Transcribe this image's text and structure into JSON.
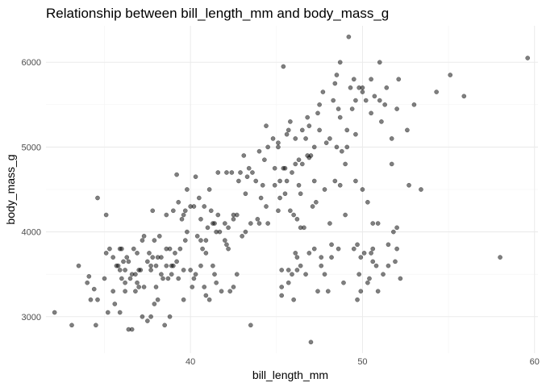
{
  "chart_data": {
    "type": "scatter",
    "title": "Relationship between bill_length_mm and body_mass_g",
    "xlabel": "bill_length_mm",
    "ylabel": "body_mass_g",
    "xlim": [
      31.6,
      60.2
    ],
    "ylim": [
      2570,
      6430
    ],
    "x_ticks": [
      40,
      50,
      60
    ],
    "x_tick_labels": [
      "40",
      "50",
      "60"
    ],
    "y_ticks": [
      3000,
      4000,
      5000,
      6000
    ],
    "y_tick_labels": [
      "3000",
      "4000",
      "5000",
      "6000"
    ],
    "x_minor": [
      35,
      45,
      55
    ],
    "y_minor": [
      3500,
      4500,
      5500
    ],
    "grid": true,
    "legend": "none",
    "points": [
      [
        32.1,
        3050
      ],
      [
        33.1,
        2900
      ],
      [
        33.5,
        3600
      ],
      [
        34.0,
        3400
      ],
      [
        34.1,
        3475
      ],
      [
        34.4,
        3325
      ],
      [
        34.5,
        2900
      ],
      [
        34.6,
        4400
      ],
      [
        34.6,
        3200
      ],
      [
        35.0,
        3450
      ],
      [
        35.1,
        4200
      ],
      [
        35.2,
        3050
      ],
      [
        35.3,
        3800
      ],
      [
        35.5,
        3700
      ],
      [
        35.5,
        3300
      ],
      [
        35.6,
        3150
      ],
      [
        35.7,
        3600
      ],
      [
        35.9,
        3050
      ],
      [
        35.9,
        3800
      ],
      [
        36.0,
        3450
      ],
      [
        36.0,
        3800
      ],
      [
        36.2,
        3300
      ],
      [
        36.2,
        3550
      ],
      [
        36.3,
        3700
      ],
      [
        36.4,
        2850
      ],
      [
        36.5,
        3450
      ],
      [
        36.6,
        3500
      ],
      [
        36.6,
        2850
      ],
      [
        36.7,
        3800
      ],
      [
        36.8,
        3500
      ],
      [
        37.0,
        3350
      ],
      [
        37.1,
        3550
      ],
      [
        37.2,
        3900
      ],
      [
        37.2,
        3000
      ],
      [
        37.3,
        3350
      ],
      [
        37.5,
        2950
      ],
      [
        37.6,
        3750
      ],
      [
        37.7,
        3600
      ],
      [
        37.7,
        3000
      ],
      [
        37.8,
        3700
      ],
      [
        37.8,
        4250
      ],
      [
        37.9,
        3150
      ],
      [
        38.1,
        3200
      ],
      [
        38.1,
        3700
      ],
      [
        38.2,
        3950
      ],
      [
        38.3,
        3500
      ],
      [
        38.5,
        2900
      ],
      [
        38.6,
        3800
      ],
      [
        38.7,
        3450
      ],
      [
        38.8,
        3800
      ],
      [
        38.9,
        3600
      ],
      [
        39.0,
        4250
      ],
      [
        39.1,
        3750
      ],
      [
        39.2,
        4675
      ],
      [
        39.3,
        3450
      ],
      [
        39.5,
        4150
      ],
      [
        39.6,
        3550
      ],
      [
        39.7,
        3900
      ],
      [
        39.8,
        4000
      ],
      [
        40.0,
        4300
      ],
      [
        40.1,
        3350
      ],
      [
        40.2,
        3450
      ],
      [
        40.3,
        3500
      ],
      [
        40.5,
        4400
      ],
      [
        40.6,
        3600
      ],
      [
        40.7,
        3800
      ],
      [
        40.8,
        4300
      ],
      [
        40.9,
        3900
      ],
      [
        41.1,
        4500
      ],
      [
        41.1,
        3200
      ],
      [
        41.3,
        4100
      ],
      [
        41.4,
        3500
      ],
      [
        41.5,
        4000
      ],
      [
        41.6,
        4700
      ],
      [
        41.8,
        3300
      ],
      [
        42.0,
        4100
      ],
      [
        42.1,
        3850
      ],
      [
        42.2,
        4050
      ],
      [
        42.3,
        3300
      ],
      [
        42.5,
        4150
      ],
      [
        42.7,
        4200
      ],
      [
        42.9,
        4700
      ],
      [
        43.1,
        4900
      ],
      [
        43.2,
        4450
      ],
      [
        43.3,
        4650
      ],
      [
        43.5,
        4100
      ],
      [
        43.8,
        4600
      ],
      [
        44.0,
        4950
      ],
      [
        44.1,
        4400
      ],
      [
        44.4,
        5250
      ],
      [
        44.5,
        4100
      ],
      [
        44.9,
        4750
      ],
      [
        45.1,
        5050
      ],
      [
        45.2,
        4400
      ],
      [
        45.3,
        3550
      ],
      [
        45.4,
        5950
      ],
      [
        45.5,
        4750
      ],
      [
        45.6,
        4600
      ],
      [
        45.7,
        3550
      ],
      [
        45.8,
        5300
      ],
      [
        46.0,
        4200
      ],
      [
        46.1,
        5100
      ],
      [
        46.2,
        3700
      ],
      [
        46.3,
        4850
      ],
      [
        46.4,
        4450
      ],
      [
        46.5,
        5200
      ],
      [
        46.6,
        4050
      ],
      [
        46.7,
        3500
      ],
      [
        46.8,
        5350
      ],
      [
        46.9,
        4875
      ],
      [
        47.0,
        2700
      ],
      [
        47.2,
        5000
      ],
      [
        47.3,
        4350
      ],
      [
        47.5,
        5500
      ],
      [
        47.6,
        3600
      ],
      [
        47.8,
        4500
      ],
      [
        48.1,
        5100
      ],
      [
        48.2,
        3850
      ],
      [
        48.4,
        4600
      ],
      [
        48.5,
        5850
      ],
      [
        48.7,
        5350
      ],
      [
        48.8,
        4950
      ],
      [
        49.1,
        5200
      ],
      [
        49.2,
        6300
      ],
      [
        49.4,
        5450
      ],
      [
        49.5,
        3800
      ],
      [
        49.6,
        4600
      ],
      [
        49.8,
        5700
      ],
      [
        50.0,
        5700
      ],
      [
        50.1,
        3750
      ],
      [
        50.2,
        5550
      ],
      [
        50.4,
        3450
      ],
      [
        50.5,
        5400
      ],
      [
        50.6,
        4100
      ],
      [
        50.8,
        3600
      ],
      [
        51.0,
        6000
      ],
      [
        51.1,
        5300
      ],
      [
        51.3,
        5500
      ],
      [
        51.5,
        3850
      ],
      [
        51.7,
        4800
      ],
      [
        51.9,
        3650
      ],
      [
        52.0,
        5450
      ],
      [
        52.2,
        3450
      ],
      [
        52.7,
        4550
      ],
      [
        53.0,
        5500
      ],
      [
        53.4,
        4500
      ],
      [
        54.3,
        5650
      ],
      [
        55.1,
        5850
      ],
      [
        55.9,
        5600
      ],
      [
        58.0,
        3700
      ],
      [
        59.6,
        6050
      ],
      [
        46.2,
        4150
      ],
      [
        45.8,
        4250
      ],
      [
        47.6,
        3700
      ],
      [
        48.9,
        3400
      ],
      [
        49.9,
        3300
      ],
      [
        45.3,
        3250
      ],
      [
        46.0,
        3200
      ],
      [
        47.4,
        3300
      ],
      [
        48.2,
        3700
      ],
      [
        50.9,
        3300
      ],
      [
        49.7,
        3850
      ],
      [
        52.0,
        4050
      ],
      [
        50.3,
        3400
      ],
      [
        51.8,
        4000
      ],
      [
        46.4,
        3600
      ],
      [
        45.7,
        3400
      ],
      [
        43.5,
        2900
      ],
      [
        42.5,
        3350
      ],
      [
        39.6,
        3200
      ],
      [
        40.9,
        3250
      ],
      [
        41.5,
        3400
      ],
      [
        38.8,
        3000
      ],
      [
        37.0,
        3550
      ],
      [
        36.2,
        3400
      ],
      [
        38.0,
        3600
      ],
      [
        40.6,
        3900
      ],
      [
        42.8,
        4600
      ],
      [
        44.5,
        5000
      ],
      [
        46.5,
        4800
      ],
      [
        47.9,
        5050
      ],
      [
        48.5,
        5000
      ],
      [
        49.0,
        4800
      ],
      [
        50.7,
        5600
      ],
      [
        49.6,
        5550
      ],
      [
        48.4,
        5750
      ],
      [
        46.1,
        4800
      ],
      [
        47.2,
        4600
      ],
      [
        50.3,
        4350
      ],
      [
        43.4,
        4750
      ],
      [
        44.9,
        4550
      ],
      [
        47.0,
        4900
      ],
      [
        48.7,
        4550
      ],
      [
        45.5,
        4450
      ],
      [
        45.1,
        4250
      ],
      [
        50.0,
        4500
      ],
      [
        40.2,
        4300
      ],
      [
        41.0,
        4050
      ],
      [
        42.2,
        3800
      ],
      [
        39.8,
        4500
      ],
      [
        37.9,
        3900
      ],
      [
        36.9,
        3750
      ],
      [
        35.9,
        3550
      ],
      [
        38.3,
        3700
      ],
      [
        39.4,
        3800
      ],
      [
        40.8,
        3350
      ],
      [
        42.7,
        3500
      ],
      [
        43.9,
        4150
      ],
      [
        45.4,
        4750
      ],
      [
        46.8,
        4900
      ],
      [
        47.7,
        5650
      ],
      [
        48.1,
        4100
      ],
      [
        49.3,
        5700
      ],
      [
        51.4,
        5700
      ],
      [
        52.1,
        5800
      ],
      [
        46.7,
        5100
      ],
      [
        45.2,
        4600
      ],
      [
        44.0,
        4100
      ],
      [
        43.6,
        4700
      ],
      [
        41.7,
        4000
      ],
      [
        40.3,
        4650
      ],
      [
        39.7,
        4250
      ],
      [
        38.6,
        3600
      ],
      [
        38.0,
        3350
      ],
      [
        37.3,
        3950
      ],
      [
        36.4,
        3650
      ],
      [
        35.1,
        3750
      ],
      [
        34.2,
        3200
      ],
      [
        39.2,
        3650
      ],
      [
        40.0,
        3550
      ],
      [
        41.4,
        4100
      ],
      [
        42.0,
        3900
      ],
      [
        44.8,
        5100
      ],
      [
        45.6,
        5150
      ],
      [
        46.9,
        5250
      ],
      [
        48.6,
        5450
      ],
      [
        49.1,
        5000
      ],
      [
        50.5,
        5800
      ],
      [
        51.0,
        5550
      ],
      [
        47.1,
        4300
      ],
      [
        44.3,
        4850
      ],
      [
        45.9,
        4700
      ],
      [
        46.4,
        4050
      ],
      [
        48.3,
        5550
      ],
      [
        49.5,
        5800
      ],
      [
        50.0,
        5650
      ],
      [
        52.6,
        5200
      ],
      [
        51.7,
        5100
      ],
      [
        45.1,
        5000
      ],
      [
        47.5,
        5200
      ],
      [
        50.6,
        3800
      ],
      [
        49.8,
        3500
      ],
      [
        49.7,
        3200
      ],
      [
        50.5,
        3750
      ],
      [
        51.5,
        3600
      ],
      [
        52.0,
        3800
      ],
      [
        49.9,
        3700
      ],
      [
        50.9,
        4100
      ],
      [
        46.9,
        3750
      ],
      [
        45.9,
        3500
      ],
      [
        46.1,
        3750
      ],
      [
        47.2,
        3800
      ],
      [
        48.0,
        3300
      ],
      [
        48.6,
        3800
      ],
      [
        45.3,
        3350
      ],
      [
        46.2,
        3550
      ],
      [
        47.8,
        3500
      ],
      [
        49.0,
        4200
      ],
      [
        50.6,
        3650
      ],
      [
        51.2,
        3500
      ],
      [
        42.1,
        4700
      ],
      [
        42.5,
        4200
      ],
      [
        43.2,
        4000
      ],
      [
        41.6,
        4200
      ],
      [
        40.4,
        3950
      ],
      [
        39.0,
        3600
      ],
      [
        38.4,
        3450
      ],
      [
        37.5,
        3650
      ],
      [
        36.8,
        3300
      ],
      [
        36.1,
        3650
      ],
      [
        35.8,
        3600
      ],
      [
        39.3,
        4350
      ],
      [
        40.6,
        4150
      ],
      [
        41.3,
        3600
      ],
      [
        43.0,
        3950
      ],
      [
        44.2,
        4550
      ],
      [
        46.3,
        4550
      ],
      [
        47.4,
        5400
      ],
      [
        48.7,
        6000
      ],
      [
        49.6,
        5150
      ],
      [
        38.9,
        3500
      ],
      [
        39.6,
        4200
      ],
      [
        40.9,
        3750
      ],
      [
        37.7,
        3550
      ],
      [
        36.9,
        3400
      ],
      [
        38.6,
        4200
      ],
      [
        41.2,
        4250
      ],
      [
        42.4,
        4700
      ],
      [
        44.4,
        4300
      ],
      [
        45.7,
        5200
      ]
    ]
  }
}
